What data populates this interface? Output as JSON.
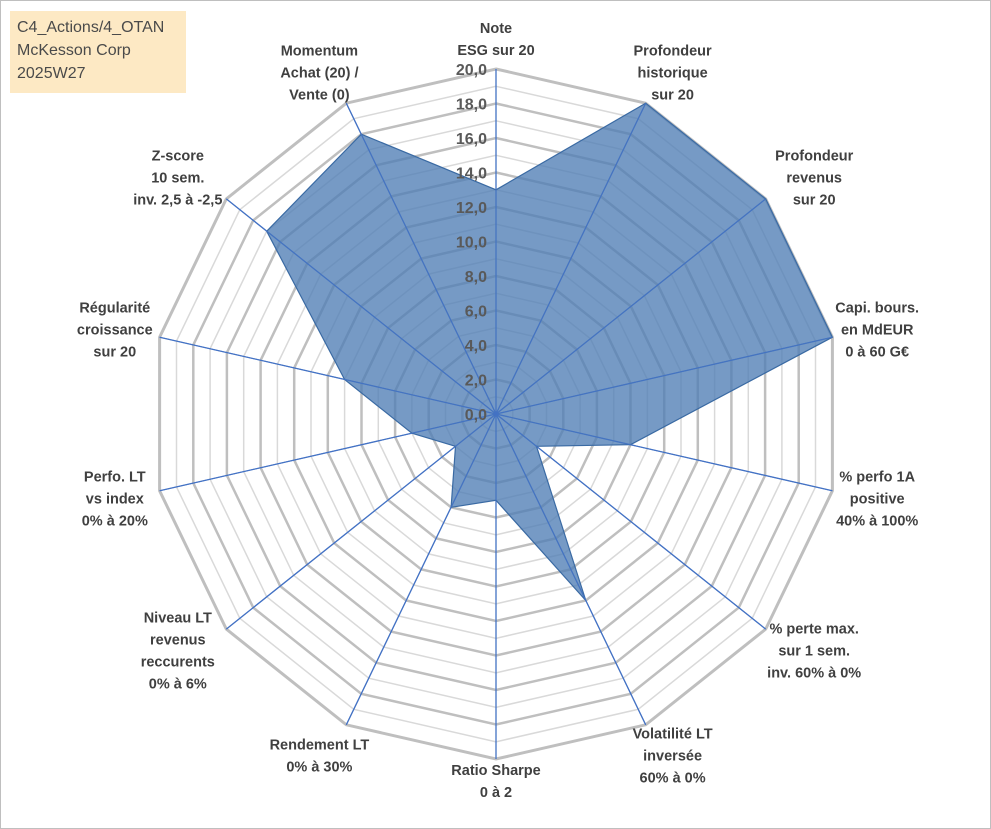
{
  "header": {
    "line1": "C4_Actions/4_OTAN",
    "line2": "McKesson Corp",
    "line3": "2025W27"
  },
  "colors": {
    "fill": "#4f7eb5",
    "stroke": "#3a6aa3",
    "axis": "#4472c4",
    "grid_major": "#bfbfbf",
    "grid_minor": "#d9d9d9"
  },
  "chart_data": {
    "type": "radar",
    "rmin": 0,
    "rmax": 20,
    "tick_labels": [
      "0,0",
      "2,0",
      "4,0",
      "6,0",
      "8,0",
      "10,0",
      "12,0",
      "14,0",
      "16,0",
      "18,0",
      "20,0"
    ],
    "categories": [
      "Note\nESG sur 20",
      "Profondeur\nhistorique\nsur 20",
      "Profondeur\nrevenus\nsur 20",
      "Capi. bours.\nen MdEUR\n0 à 60 G€",
      "% perfo 1A\npositive\n40% à 100%",
      "% perte max.\nsur 1 sem.\ninv. 60% à 0%",
      "Volatilité LT\ninversée\n60% à 0%",
      "Ratio Sharpe\n0 à 2",
      "Rendement LT\n0% à 30%",
      "Niveau LT\nrevenus\nreccurents\n0% à 6%",
      "Perfo. LT\nvs index\n0% à 20%",
      "Régularité\ncroissance\nsur 20",
      "Z-score\n10 sem.\ninv. 2,5 à -2,5",
      "Momentum\nAchat (20) /\nVente (0)"
    ],
    "values": [
      13,
      20,
      20,
      20,
      8,
      3,
      12,
      5,
      6,
      3,
      5,
      9,
      17,
      18
    ]
  }
}
